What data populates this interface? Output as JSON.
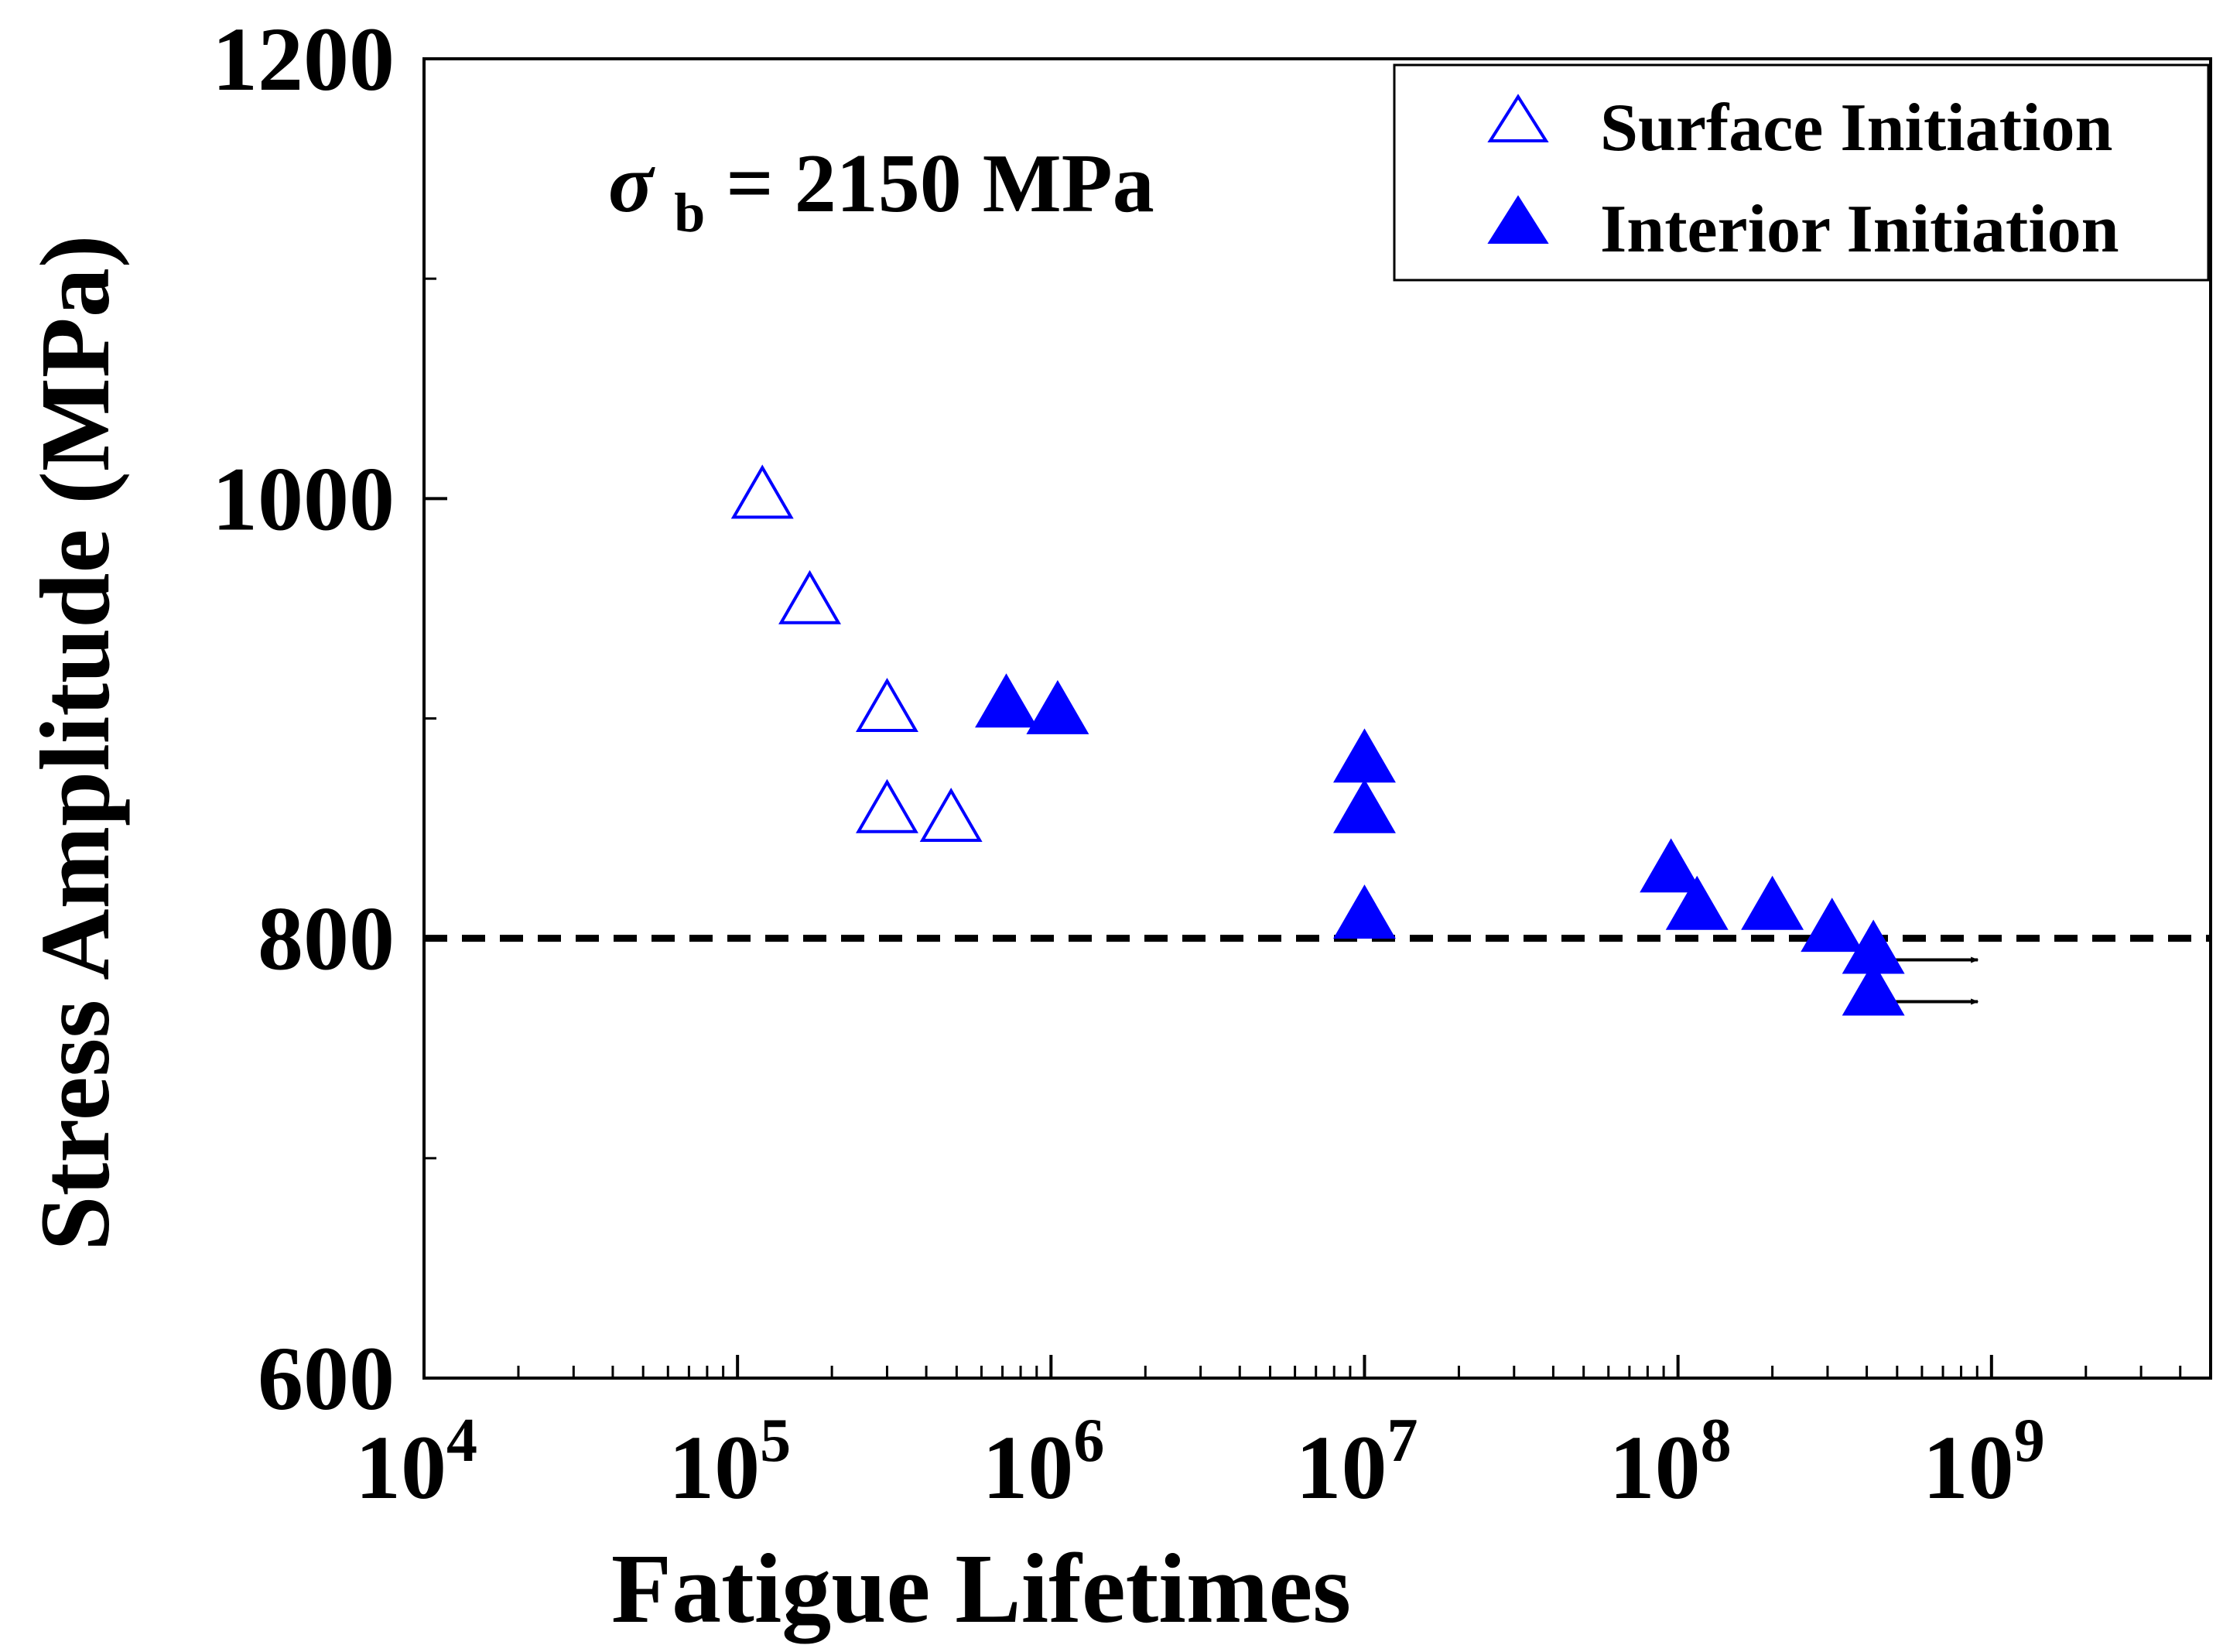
{
  "chart_data": {
    "type": "scatter",
    "title": "",
    "annotation": {
      "symbol": "σ",
      "subscript": "b",
      "text": "= 2150 MPa"
    },
    "xlabel": "Fatigue Lifetimes",
    "ylabel": "Stress Amplitude (MPa)",
    "x_scale": "log",
    "xlim": [
      10000,
      5000000000
    ],
    "ylim": [
      600,
      1200
    ],
    "x_ticks": [
      {
        "value": 10000,
        "base": "10",
        "exp": "4"
      },
      {
        "value": 100000,
        "base": "10",
        "exp": "5"
      },
      {
        "value": 1000000,
        "base": "10",
        "exp": "6"
      },
      {
        "value": 10000000,
        "base": "10",
        "exp": "7"
      },
      {
        "value": 100000000,
        "base": "10",
        "exp": "8"
      },
      {
        "value": 1000000000,
        "base": "10",
        "exp": "9"
      }
    ],
    "y_ticks": [
      {
        "value": 600,
        "label": "600"
      },
      {
        "value": 800,
        "label": "800"
      },
      {
        "value": 1000,
        "label": "1000"
      },
      {
        "value": 1200,
        "label": "1200"
      }
    ],
    "y_minor_ticks": [
      700,
      900,
      1100
    ],
    "reference_line": {
      "y": 800,
      "style": "dashed"
    },
    "legend_position": "top-right",
    "series": [
      {
        "name": "Surface Initiation",
        "marker": "open-triangle",
        "color": "#0000ff",
        "points": [
          {
            "x": 120000,
            "y": 1000
          },
          {
            "x": 170000,
            "y": 952
          },
          {
            "x": 300000,
            "y": 903
          },
          {
            "x": 300000,
            "y": 857
          },
          {
            "x": 480000,
            "y": 853
          }
        ]
      },
      {
        "name": "Interior Initiation",
        "marker": "filled-triangle",
        "color": "#0000ff",
        "points": [
          {
            "x": 720000,
            "y": 905
          },
          {
            "x": 1050000,
            "y": 902
          },
          {
            "x": 10000000,
            "y": 880
          },
          {
            "x": 10000000,
            "y": 857
          },
          {
            "x": 10000000,
            "y": 809
          },
          {
            "x": 95000000,
            "y": 830
          },
          {
            "x": 115000000,
            "y": 813
          },
          {
            "x": 200000000,
            "y": 813
          },
          {
            "x": 310000000,
            "y": 803
          },
          {
            "x": 420000000,
            "y": 793,
            "runout": true
          },
          {
            "x": 420000000,
            "y": 774,
            "runout": true
          }
        ]
      }
    ]
  }
}
